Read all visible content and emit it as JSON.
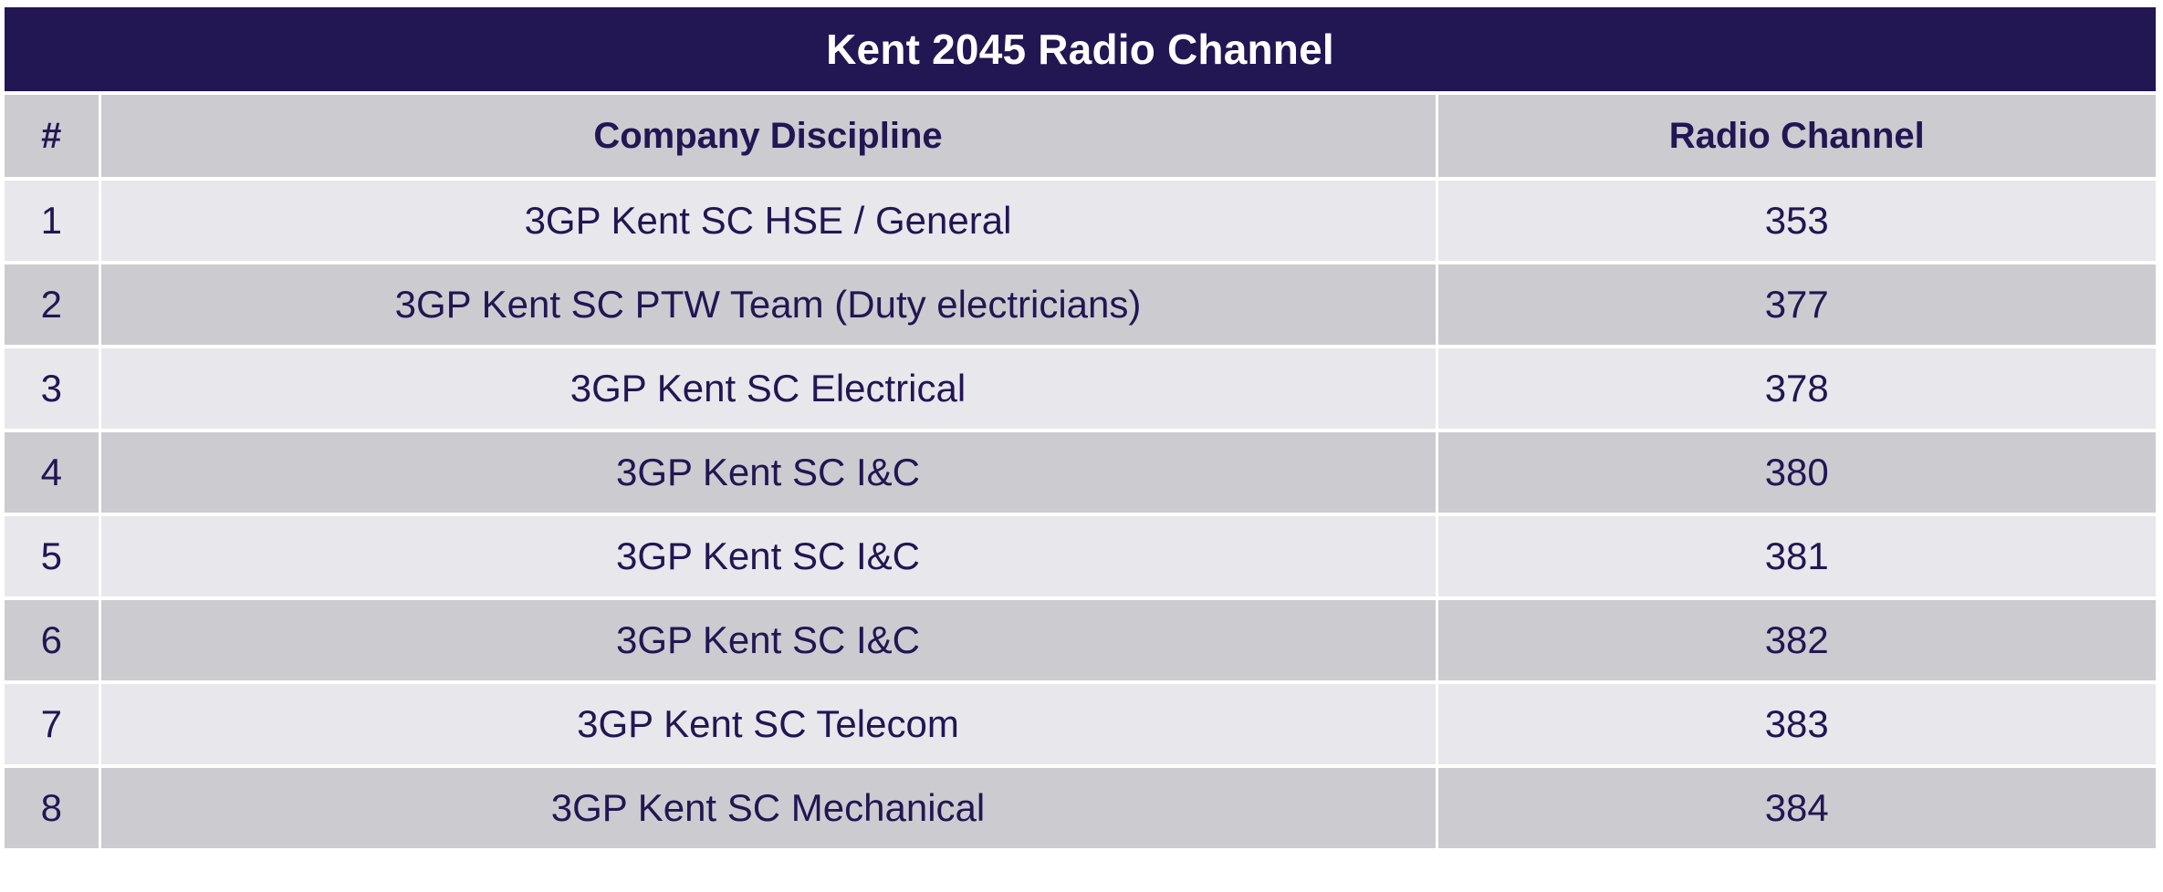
{
  "title": "Kent 2045 Radio Channel",
  "columns": {
    "num": "#",
    "discipline": "Company Discipline",
    "channel": "Radio Channel"
  },
  "rows": [
    {
      "num": "1",
      "discipline": "3GP Kent SC HSE / General",
      "channel": "353"
    },
    {
      "num": "2",
      "discipline": "3GP Kent SC PTW Team (Duty electricians)",
      "channel": "377"
    },
    {
      "num": "3",
      "discipline": "3GP Kent SC Electrical",
      "channel": "378"
    },
    {
      "num": "4",
      "discipline": "3GP Kent SC I&C",
      "channel": "380"
    },
    {
      "num": "5",
      "discipline": "3GP Kent SC I&C",
      "channel": "381"
    },
    {
      "num": "6",
      "discipline": "3GP Kent SC I&C",
      "channel": "382"
    },
    {
      "num": "7",
      "discipline": "3GP Kent SC Telecom",
      "channel": "383"
    },
    {
      "num": "8",
      "discipline": "3GP Kent SC Mechanical",
      "channel": "384"
    }
  ],
  "colors": {
    "title_bg": "#221653",
    "text": "#221653",
    "row_light": "#e8e7eb",
    "row_dark": "#cccbd0"
  }
}
